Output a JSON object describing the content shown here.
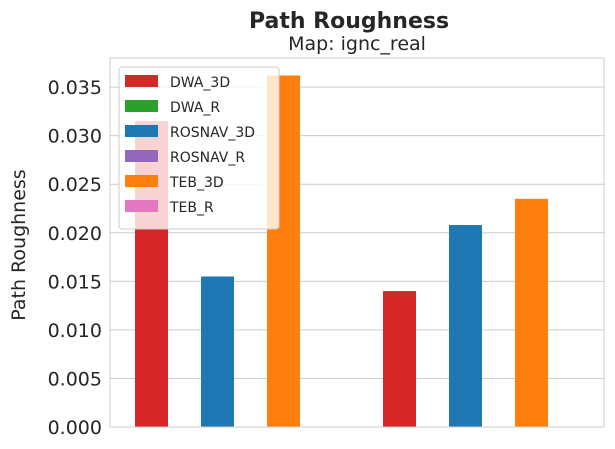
{
  "chart_data": {
    "type": "bar",
    "title": "Path Roughness",
    "subtitle": "Map: ignc_real",
    "xlabel": "",
    "ylabel": "Path Roughness",
    "ylim": [
      0,
      0.038
    ],
    "yticks": [
      "0.000",
      "0.005",
      "0.010",
      "0.015",
      "0.020",
      "0.025",
      "0.030",
      "0.035"
    ],
    "ytick_values": [
      0,
      0.005,
      0.01,
      0.015,
      0.02,
      0.025,
      0.03,
      0.035
    ],
    "grid": true,
    "legend_placement": "top-left",
    "series": [
      {
        "name": "DWA_3D",
        "color": "#d62728",
        "values": [
          0.0315,
          0.014
        ]
      },
      {
        "name": "DWA_R",
        "color": "#2ca02c",
        "values": [
          0,
          0
        ]
      },
      {
        "name": "ROSNAV_3D",
        "color": "#1f77b4",
        "values": [
          0.0155,
          0.0208
        ]
      },
      {
        "name": "ROSNAV_R",
        "color": "#9467bd",
        "values": [
          0,
          0
        ]
      },
      {
        "name": "TEB_3D",
        "color": "#ff7f0e",
        "values": [
          0.0362,
          0.0235
        ]
      },
      {
        "name": "TEB_R",
        "color": "#e377c2",
        "values": [
          0,
          0
        ]
      }
    ]
  }
}
